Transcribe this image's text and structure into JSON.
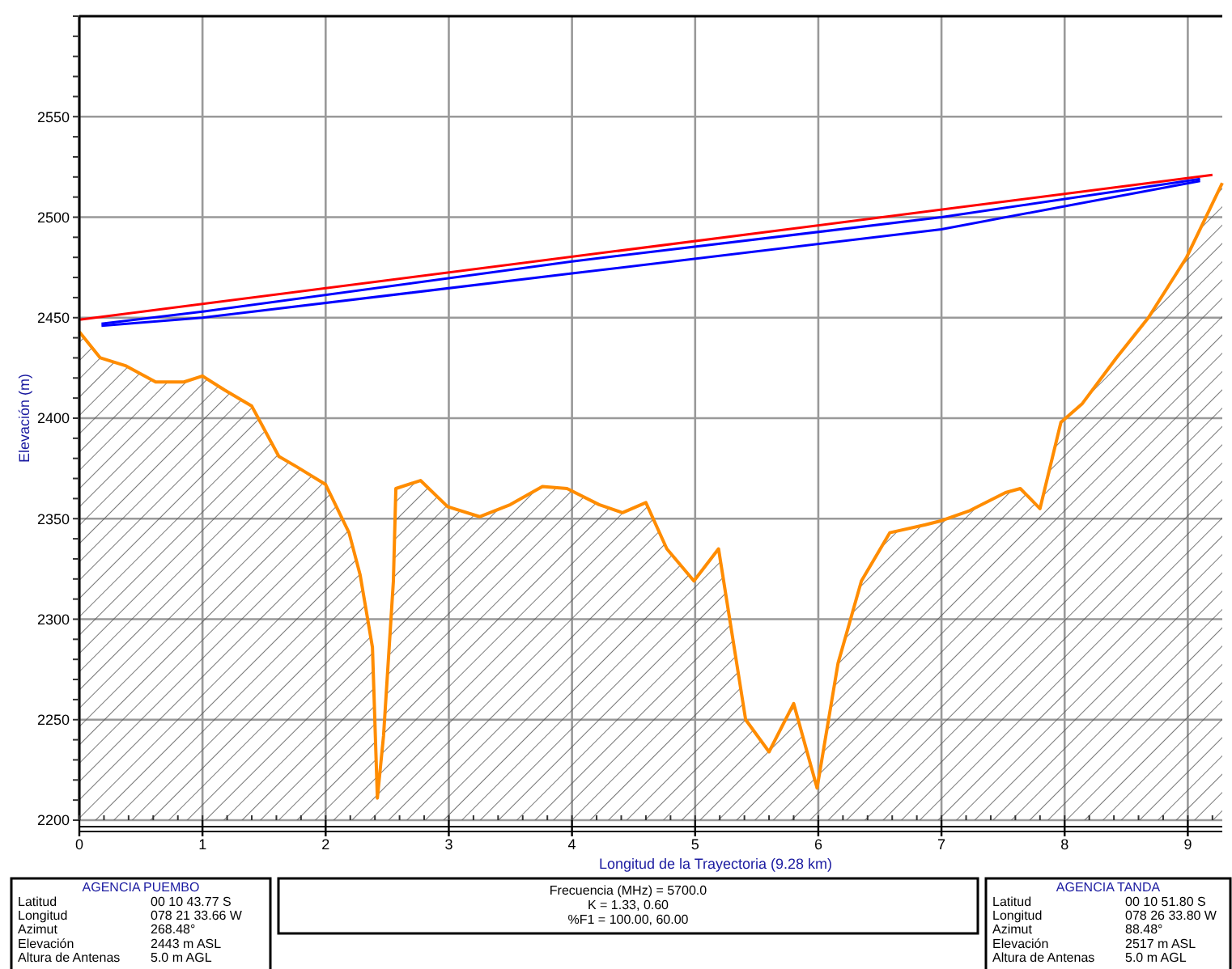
{
  "chart_data": {
    "type": "line",
    "xlabel": "Longitud de la Trayectoria (9.28 km)",
    "ylabel": "Elevación (m)",
    "xlim": [
      0,
      9.28
    ],
    "ylim": [
      2200,
      2600
    ],
    "xticks": [
      0,
      1,
      2,
      3,
      4,
      5,
      6,
      7,
      8,
      9
    ],
    "yticks": [
      2200,
      2250,
      2300,
      2350,
      2400,
      2450,
      2500,
      2550
    ],
    "grid": true,
    "series": [
      {
        "type": "area",
        "color": "#ff8c00",
        "x": [
          0,
          0.17,
          0.38,
          0.62,
          0.85,
          1.0,
          1.18,
          1.4,
          1.62,
          1.76,
          2.0,
          2.19,
          2.28,
          2.38,
          2.42,
          2.47,
          2.55,
          2.57,
          2.77,
          2.99,
          3.25,
          3.5,
          3.76,
          3.96,
          4.22,
          4.41,
          4.6,
          4.77,
          4.99,
          5.19,
          5.41,
          5.6,
          5.8,
          5.99,
          6.16,
          6.35,
          6.58,
          6.87,
          7.0,
          7.23,
          7.52,
          7.64,
          7.8,
          7.97,
          8.14,
          8.42,
          8.68,
          8.99,
          9.28
        ],
        "values": [
          2443,
          2430,
          2426,
          2418,
          2418,
          2421,
          2414,
          2406,
          2381,
          2376,
          2367,
          2343,
          2322,
          2286,
          2211,
          2242,
          2319,
          2365,
          2369,
          2356,
          2351,
          2357,
          2366,
          2365,
          2357,
          2353,
          2358,
          2335,
          2319,
          2335,
          2250,
          2234,
          2258,
          2216,
          2278,
          2319,
          2343,
          2347,
          2349,
          2354,
          2363,
          2365,
          2355,
          2398,
          2407,
          2430,
          2450,
          2480,
          2517
        ]
      },
      {
        "color": "#ff0000",
        "x": [
          0,
          9.2
        ],
        "values": [
          2449,
          2521
        ]
      },
      {
        "color": "#0000ff",
        "x": [
          0.18,
          1,
          4,
          7,
          9.1
        ],
        "values": [
          2447,
          2453,
          2478,
          2500,
          2519
        ]
      },
      {
        "color": "#0000ff",
        "x": [
          0.18,
          1,
          4,
          7,
          9.1
        ],
        "values": [
          2446,
          2450,
          2472,
          2494,
          2518
        ]
      }
    ],
    "annotations": [
      "AGENCIA PUEMBO",
      "Latitud\t00 10 43.77 S",
      "Longitud\t078 21 33.66 W",
      "Azimut\t268.48°",
      "Elevación\t2443 m ASL",
      "Altura de Antenas\t5.0 m AGL",
      "Frecuencia (MHz) = 5700.0",
      "K = 1.33, 0.60",
      "%F1 = 100.00, 60.00",
      "AGENCIA TANDA",
      "Latitud\t00 10 51.80 S",
      "Longitud\t078 26 33.80 W",
      "Azimut\t88.48°",
      "Elevación\t2517 m ASL",
      "Altura de Antenas\t5.0 m AGL"
    ]
  }
}
